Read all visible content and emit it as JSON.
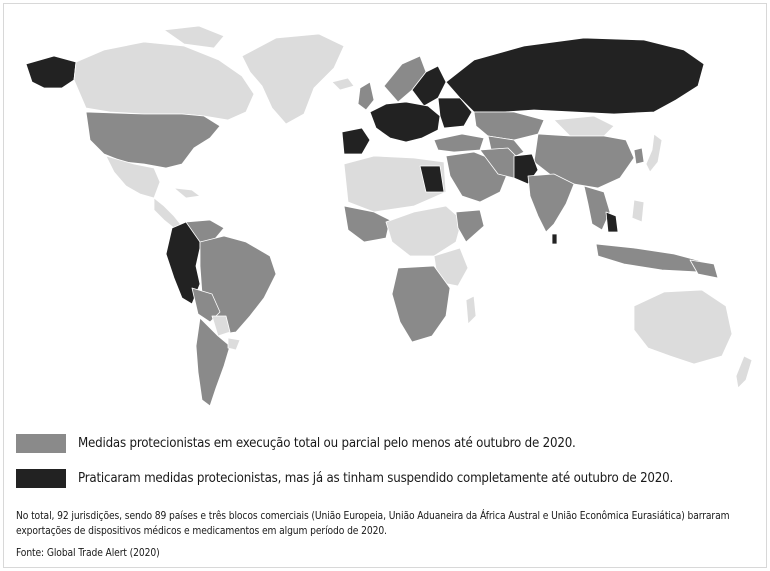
{
  "colors": {
    "partial_or_total": "#8a8a8a",
    "suspended": "#222222",
    "no_measures": "#dcdcdc"
  },
  "legend": [
    {
      "label": "Medidas protecionistas em execução total ou parcial pelo menos até outubro de 2020.",
      "color": "#8a8a8a"
    },
    {
      "label": "Praticaram medidas protecionistas, mas já as tinham suspendido completamente até outubro de 2020.",
      "color": "#222222"
    }
  ],
  "note": "No total, 92 jurisdições, sendo 89 países e três blocos comerciais (União Europeia, União Aduaneira da África Austral e União Econômica Eurasiática) barraram exportações de dispositivos médicos e medicamentos em algum período de 2020.",
  "source": "Fonte: Global Trade Alert (2020)"
}
